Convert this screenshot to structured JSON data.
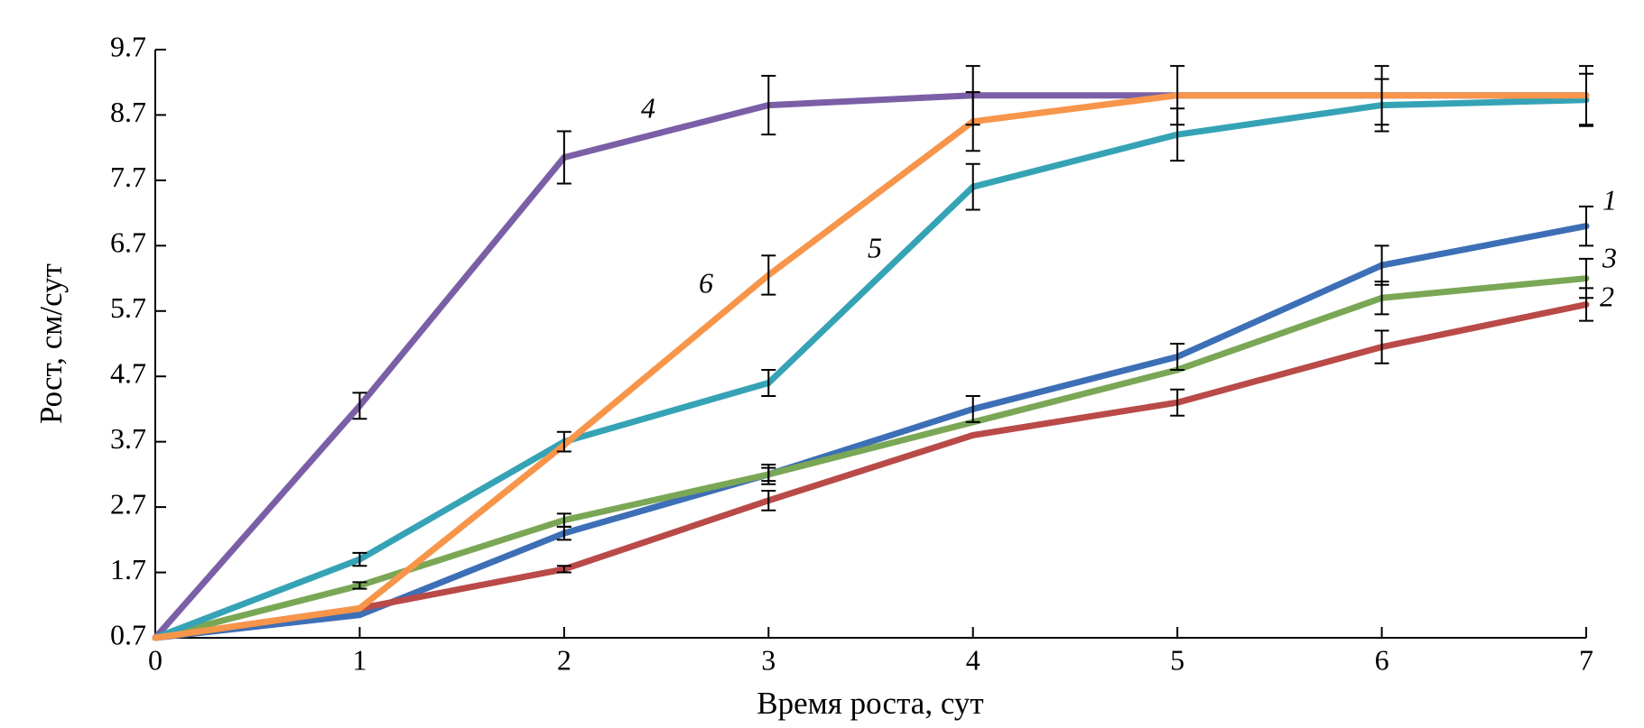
{
  "chart_data": {
    "type": "line",
    "x_label": "Время роста, сут",
    "y_label": "Рост, см/сут",
    "x": [
      0,
      1,
      2,
      3,
      4,
      5,
      6,
      7
    ],
    "xlim": [
      0,
      7
    ],
    "xticks": [
      0,
      1,
      2,
      3,
      4,
      5,
      6,
      7
    ],
    "ylim": [
      0.7,
      9.7
    ],
    "yticks": [
      0.7,
      1.7,
      2.7,
      3.7,
      4.7,
      5.7,
      6.7,
      7.7,
      8.7,
      9.7
    ],
    "grid": false,
    "series": [
      {
        "name": "1",
        "color": "#3d6fb6",
        "values": [
          0.7,
          1.05,
          2.3,
          3.2,
          4.2,
          5.0,
          6.4,
          7.0
        ],
        "errors": [
          null,
          null,
          0.1,
          0.15,
          0.2,
          0.2,
          0.3,
          0.3
        ]
      },
      {
        "name": "2",
        "color": "#b94a48",
        "values": [
          0.7,
          1.15,
          1.75,
          2.8,
          3.8,
          4.3,
          5.15,
          5.8
        ],
        "errors": [
          null,
          null,
          0.05,
          0.15,
          null,
          0.2,
          0.25,
          0.25
        ]
      },
      {
        "name": "3",
        "color": "#7aa755",
        "values": [
          0.7,
          1.5,
          2.5,
          3.2,
          4.0,
          4.8,
          5.9,
          6.2
        ],
        "errors": [
          null,
          0.05,
          0.1,
          0.1,
          null,
          null,
          0.25,
          0.3
        ]
      },
      {
        "name": "4",
        "color": "#7b5fa6",
        "values": [
          0.7,
          4.25,
          8.05,
          8.85,
          9.0,
          9.0,
          9.0,
          9.0
        ],
        "errors": [
          null,
          0.2,
          0.4,
          0.45,
          0.45,
          0.45,
          0.45,
          0.45
        ]
      },
      {
        "name": "5",
        "color": "#35a3b5",
        "values": [
          0.7,
          1.9,
          3.7,
          4.6,
          7.6,
          8.4,
          8.85,
          8.93
        ],
        "errors": [
          null,
          0.1,
          0.15,
          0.2,
          0.35,
          0.4,
          0.4,
          0.4
        ]
      },
      {
        "name": "6",
        "color": "#f7954a",
        "values": [
          0.7,
          1.15,
          3.65,
          6.25,
          8.6,
          9.0,
          9.0,
          9.0
        ],
        "errors": [
          null,
          null,
          null,
          0.3,
          0.45,
          null,
          null,
          null
        ]
      }
    ]
  }
}
